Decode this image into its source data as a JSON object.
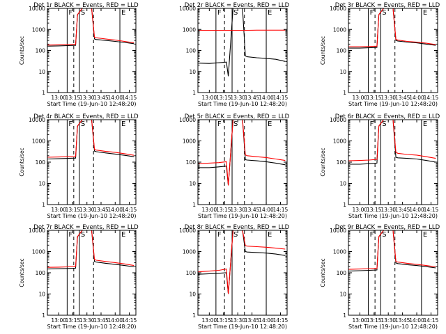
{
  "figure": {
    "xlabel": "Start Time (19-Jun-10 12:48:20)",
    "ylabel": "Counts/sec",
    "x_ticks": [
      "13:00",
      "13:15",
      "13:30",
      "13:45",
      "14:00",
      "14:15"
    ],
    "y_ticks": [
      "1",
      "10",
      "100",
      "1000",
      "10000"
    ],
    "marker_letters": [
      "F",
      "S",
      "E"
    ],
    "colors": {
      "events": "#000000",
      "lld": "#ff0000",
      "axes": "#000000"
    }
  },
  "chart_data": [
    {
      "type": "line",
      "title": "Det 1r BLACK = Events, RED = LLD",
      "xlabel": "Start Time (19-Jun-10 12:48:20)",
      "ylabel": "Counts/sec",
      "ylog": true,
      "ylim": [
        1,
        10000
      ],
      "x": [
        "12:48",
        "13:00",
        "13:10",
        "13:18",
        "13:20",
        "13:25",
        "13:35",
        "13:38",
        "13:40",
        "13:50",
        "14:00",
        "14:10",
        "14:20"
      ],
      "series": [
        {
          "name": "Events",
          "values": [
            160,
            165,
            170,
            175,
            5000,
            10000,
            10000,
            350,
            330,
            300,
            270,
            240,
            210
          ]
        },
        {
          "name": "LLD",
          "values": [
            180,
            185,
            190,
            195,
            5000,
            10000,
            10000,
            420,
            400,
            350,
            310,
            270,
            230
          ]
        }
      ],
      "markers": [
        {
          "label": "F",
          "x": "13:09"
        },
        {
          "label": "S",
          "x": "13:22"
        },
        {
          "label": "E",
          "x": "14:05"
        }
      ]
    },
    {
      "type": "line",
      "title": "Det 2r BLACK = Events, RED = LLD",
      "xlabel": "Start Time (19-Jun-10 12:48:20)",
      "ylabel": "",
      "ylog": true,
      "ylim": [
        1,
        10000
      ],
      "x": [
        "12:48",
        "13:00",
        "13:10",
        "13:18",
        "13:20",
        "13:25",
        "13:35",
        "13:38",
        "13:40",
        "13:50",
        "14:00",
        "14:10",
        "14:20"
      ],
      "series": [
        {
          "name": "Events",
          "values": [
            25,
            24,
            26,
            28,
            6,
            10000,
            10000,
            55,
            50,
            45,
            42,
            38,
            30
          ]
        },
        {
          "name": "LLD",
          "values": [
            900,
            900,
            900,
            900,
            900,
            900,
            900,
            900,
            900,
            920,
            920,
            920,
            920
          ]
        }
      ],
      "markers": [
        {
          "label": "F",
          "x": "13:07"
        },
        {
          "label": "S",
          "x": "13:24"
        },
        {
          "label": "E",
          "x": "14:00"
        }
      ]
    },
    {
      "type": "line",
      "title": "Det 3r BLACK = Events, RED = LLD",
      "xlabel": "Start Time (19-Jun-10 12:48:20)",
      "ylabel": "Counts/sec",
      "ylog": true,
      "ylim": [
        1,
        10000
      ],
      "x": [
        "12:48",
        "13:00",
        "13:10",
        "13:18",
        "13:20",
        "13:25",
        "13:35",
        "13:38",
        "13:40",
        "13:50",
        "14:00",
        "14:10",
        "14:20"
      ],
      "series": [
        {
          "name": "Events",
          "values": [
            130,
            130,
            135,
            140,
            5000,
            10000,
            10000,
            300,
            280,
            250,
            230,
            200,
            175
          ]
        },
        {
          "name": "LLD",
          "values": [
            150,
            150,
            155,
            160,
            5000,
            10000,
            10000,
            340,
            310,
            270,
            250,
            220,
            190
          ]
        }
      ],
      "markers": [
        {
          "label": "F",
          "x": "13:09"
        },
        {
          "label": "S",
          "x": "13:22"
        },
        {
          "label": "E",
          "x": "14:05"
        }
      ]
    },
    {
      "type": "line",
      "title": "Det 4r BLACK = Events, RED = LLD",
      "xlabel": "Start Time (19-Jun-10 12:48:20)",
      "ylabel": "Counts/sec",
      "ylog": true,
      "ylim": [
        1,
        10000
      ],
      "x": [
        "12:48",
        "13:00",
        "13:10",
        "13:18",
        "13:20",
        "13:25",
        "13:35",
        "13:38",
        "13:40",
        "13:50",
        "14:00",
        "14:10",
        "14:20"
      ],
      "series": [
        {
          "name": "Events",
          "values": [
            140,
            145,
            150,
            155,
            5000,
            10000,
            10000,
            330,
            310,
            270,
            240,
            210,
            180
          ]
        },
        {
          "name": "LLD",
          "values": [
            170,
            175,
            180,
            185,
            5000,
            10000,
            10000,
            400,
            370,
            320,
            290,
            250,
            210
          ]
        }
      ],
      "markers": [
        {
          "label": "F",
          "x": "13:09"
        },
        {
          "label": "S",
          "x": "13:22"
        },
        {
          "label": "E",
          "x": "14:05"
        }
      ]
    },
    {
      "type": "line",
      "title": "Det 5r BLACK = Events, RED = LLD",
      "xlabel": "Start Time (19-Jun-10 12:48:20)",
      "ylabel": "",
      "ylog": true,
      "ylim": [
        1,
        10000
      ],
      "x": [
        "12:48",
        "13:00",
        "13:10",
        "13:18",
        "13:20",
        "13:25",
        "13:35",
        "13:38",
        "13:40",
        "13:50",
        "14:00",
        "14:10",
        "14:20"
      ],
      "series": [
        {
          "name": "Events",
          "values": [
            55,
            55,
            60,
            65,
            8,
            10000,
            10000,
            130,
            125,
            115,
            105,
            90,
            75
          ]
        },
        {
          "name": "LLD",
          "values": [
            85,
            90,
            95,
            105,
            8,
            10000,
            10000,
            220,
            200,
            180,
            165,
            140,
            120
          ]
        }
      ],
      "markers": [
        {
          "label": "F",
          "x": "13:07"
        },
        {
          "label": "S",
          "x": "13:24"
        },
        {
          "label": "E",
          "x": "14:00"
        }
      ]
    },
    {
      "type": "line",
      "title": "Det 6r BLACK = Events, RED = LLD",
      "xlabel": "Start Time (19-Jun-10 12:48:20)",
      "ylabel": "Counts/sec",
      "ylog": true,
      "ylim": [
        1,
        10000
      ],
      "x": [
        "12:48",
        "13:00",
        "13:10",
        "13:18",
        "13:20",
        "13:25",
        "13:35",
        "13:38",
        "13:40",
        "13:50",
        "14:00",
        "14:10",
        "14:20"
      ],
      "series": [
        {
          "name": "Events",
          "values": [
            80,
            80,
            85,
            90,
            5000,
            10000,
            10000,
            170,
            160,
            150,
            140,
            120,
            100
          ]
        },
        {
          "name": "LLD",
          "values": [
            115,
            120,
            125,
            135,
            5000,
            10000,
            10000,
            290,
            260,
            230,
            215,
            180,
            150
          ]
        }
      ],
      "markers": [
        {
          "label": "F",
          "x": "13:09"
        },
        {
          "label": "S",
          "x": "13:22"
        },
        {
          "label": "E",
          "x": "14:05"
        }
      ]
    },
    {
      "type": "line",
      "title": "Det 7r BLACK = Events, RED = LLD",
      "xlabel": "Start Time (19-Jun-10 12:48:20)",
      "ylabel": "Counts/sec",
      "ylog": true,
      "ylim": [
        1,
        10000
      ],
      "x": [
        "12:48",
        "13:00",
        "13:10",
        "13:18",
        "13:20",
        "13:25",
        "13:35",
        "13:38",
        "13:40",
        "13:50",
        "14:00",
        "14:10",
        "14:20"
      ],
      "series": [
        {
          "name": "Events",
          "values": [
            150,
            155,
            160,
            165,
            5000,
            10000,
            10000,
            340,
            320,
            280,
            250,
            220,
            190
          ]
        },
        {
          "name": "LLD",
          "values": [
            180,
            185,
            190,
            200,
            5000,
            10000,
            10000,
            420,
            390,
            340,
            300,
            260,
            220
          ]
        }
      ],
      "markers": [
        {
          "label": "F",
          "x": "13:09"
        },
        {
          "label": "S",
          "x": "13:22"
        },
        {
          "label": "E",
          "x": "14:05"
        }
      ]
    },
    {
      "type": "line",
      "title": "Det 8r BLACK = Events, RED = LLD",
      "xlabel": "Start Time (19-Jun-10 12:48:20)",
      "ylabel": "",
      "ylog": true,
      "ylim": [
        1,
        10000
      ],
      "x": [
        "12:48",
        "13:00",
        "13:10",
        "13:18",
        "13:20",
        "13:25",
        "13:35",
        "13:38",
        "13:40",
        "13:50",
        "14:00",
        "14:10",
        "14:20"
      ],
      "series": [
        {
          "name": "Events",
          "values": [
            85,
            90,
            95,
            100,
            10,
            10000,
            10000,
            1000,
            950,
            900,
            850,
            760,
            650
          ]
        },
        {
          "name": "LLD",
          "values": [
            110,
            120,
            130,
            150,
            10,
            10000,
            10000,
            1900,
            1800,
            1700,
            1600,
            1450,
            1300
          ]
        }
      ],
      "markers": [
        {
          "label": "F",
          "x": "13:07"
        },
        {
          "label": "S",
          "x": "13:24"
        },
        {
          "label": "E",
          "x": "14:00"
        }
      ]
    },
    {
      "type": "line",
      "title": "Det 9r BLACK = Events, RED = LLD",
      "xlabel": "Start Time (19-Jun-10 12:48:20)",
      "ylabel": "Counts/sec",
      "ylog": true,
      "ylim": [
        1,
        10000
      ],
      "x": [
        "12:48",
        "13:00",
        "13:10",
        "13:18",
        "13:20",
        "13:25",
        "13:35",
        "13:38",
        "13:40",
        "13:50",
        "14:00",
        "14:10",
        "14:20"
      ],
      "series": [
        {
          "name": "Events",
          "values": [
            120,
            125,
            130,
            135,
            5000,
            10000,
            10000,
            290,
            270,
            240,
            220,
            195,
            170
          ]
        },
        {
          "name": "LLD",
          "values": [
            145,
            150,
            155,
            160,
            5000,
            10000,
            10000,
            340,
            320,
            280,
            250,
            220,
            190
          ]
        }
      ],
      "markers": [
        {
          "label": "F",
          "x": "13:09"
        },
        {
          "label": "S",
          "x": "13:22"
        },
        {
          "label": "E",
          "x": "14:05"
        }
      ]
    }
  ]
}
